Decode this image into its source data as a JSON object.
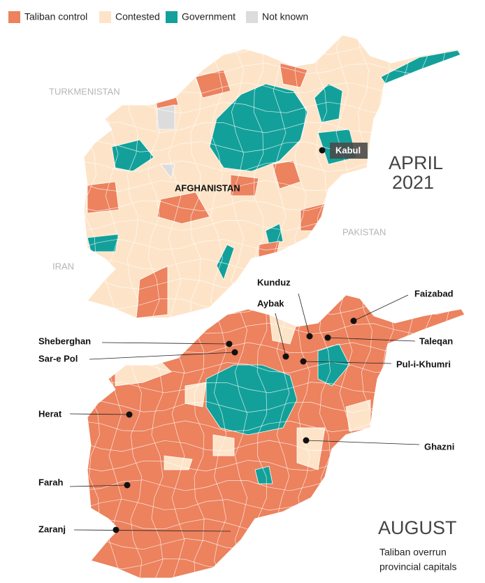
{
  "legend": {
    "items": [
      {
        "label": "Taliban control",
        "color": "#ec825e"
      },
      {
        "label": "Contested",
        "color": "#fde4c8"
      },
      {
        "label": "Government",
        "color": "#13a09a"
      },
      {
        "label": "Not known",
        "color": "#dcdcdc"
      }
    ]
  },
  "april_map": {
    "countries": [
      "TURKMENISTAN",
      "IRAN",
      "PAKISTAN"
    ],
    "country_label": "AFGHANISTAN",
    "capital": "Kabul",
    "period": [
      "APRIL",
      "2021"
    ]
  },
  "august_map": {
    "period": "AUGUST",
    "caption": [
      "Taliban overrun",
      "provincial capitals"
    ],
    "cities": [
      {
        "name": "Kunduz"
      },
      {
        "name": "Aybak"
      },
      {
        "name": "Faizabad"
      },
      {
        "name": "Sheberghan"
      },
      {
        "name": "Sar-e Pol"
      },
      {
        "name": "Taleqan"
      },
      {
        "name": "Pul-i-Khumri"
      },
      {
        "name": "Herat"
      },
      {
        "name": "Ghazni"
      },
      {
        "name": "Farah"
      },
      {
        "name": "Zaranj"
      }
    ]
  }
}
